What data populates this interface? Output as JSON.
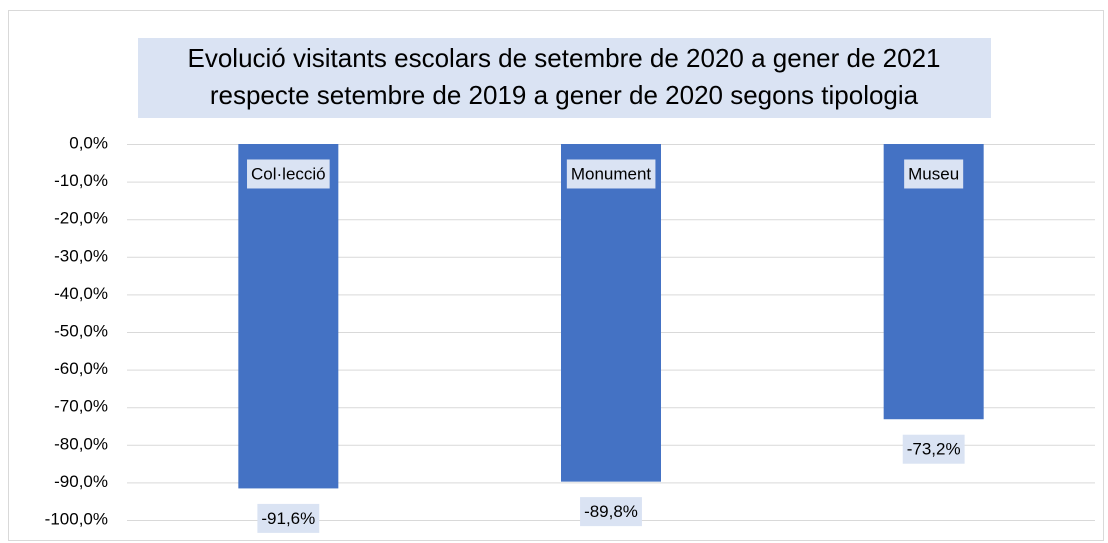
{
  "chart_data": {
    "type": "bar",
    "title": [
      "Evolució visitants escolars de setembre de 2020 a gener de 2021",
      "respecte setembre de 2019 a gener de 2020 segons tipologia"
    ],
    "categories": [
      "Col·lecció",
      "Monument",
      "Museu"
    ],
    "values": [
      -91.6,
      -89.8,
      -73.2
    ],
    "value_labels": [
      "-91,6%",
      "-89,8%",
      "-73,2%"
    ],
    "color": "#4472c4",
    "ylim": [
      -100,
      0
    ],
    "yticks": [
      {
        "value": 0,
        "label": "0,0%"
      },
      {
        "value": -10,
        "label": "-10,0%"
      },
      {
        "value": -20,
        "label": "-20,0%"
      },
      {
        "value": -30,
        "label": "-30,0%"
      },
      {
        "value": -40,
        "label": "-40,0%"
      },
      {
        "value": -50,
        "label": "-50,0%"
      },
      {
        "value": -60,
        "label": "-60,0%"
      },
      {
        "value": -70,
        "label": "-70,0%"
      },
      {
        "value": -80,
        "label": "-80,0%"
      },
      {
        "value": -90,
        "label": "-90,0%"
      },
      {
        "value": -100,
        "label": "-100,0%"
      }
    ],
    "grid": true
  }
}
